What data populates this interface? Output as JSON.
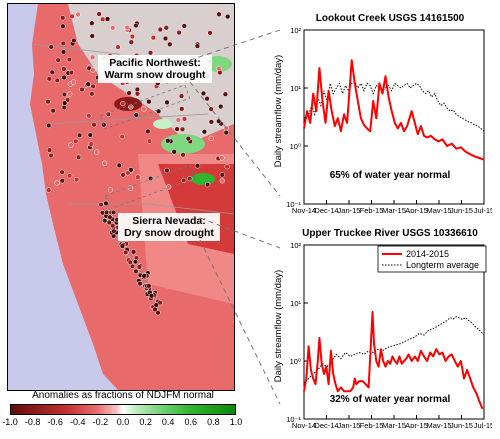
{
  "map": {
    "callout_pnw_line1": "Pacific Northwest:",
    "callout_pnw_line2": "Warm snow drought",
    "callout_sierra_line1": "Sierra Nevada:",
    "callout_sierra_line2": "Dry snow drought",
    "colorbar_title": "Anomalies as fractions of NDJFM normal",
    "colorbar_ticks": [
      "-1.0",
      "-0.8",
      "-0.6",
      "-0.4",
      "-0.2",
      "0.0",
      "0.2",
      "0.4",
      "0.6",
      "0.8",
      "1.0"
    ],
    "colors": {
      "land_dry": "#e86a6a",
      "land_dark": "#8b1a1a",
      "wet": "#2fb62f",
      "ocean": "#c9c9ec"
    }
  },
  "chart_data": [
    {
      "type": "line",
      "title": "Lookout Creek USGS 14161500",
      "ylabel": "Daily streamflow (mm/day)",
      "xlabel": "",
      "x": [
        "Nov-14",
        "Dec-14",
        "Jan-15",
        "Feb-15",
        "Mar-15",
        "Apr-15",
        "May-15",
        "Jun-15",
        "Jul-15"
      ],
      "y_scale": "log",
      "ylim": [
        0.1,
        100
      ],
      "y_ticks": [
        "10⁻¹",
        "10⁰",
        "10¹",
        "10²"
      ],
      "annotation": "65% of water year normal",
      "legend": false,
      "series": [
        {
          "style": "solid",
          "color": "#ff0000",
          "points": [
            [
              0,
              2
            ],
            [
              4,
              4
            ],
            [
              8,
              2.5
            ],
            [
              12,
              8
            ],
            [
              16,
              4
            ],
            [
              20,
              22
            ],
            [
              24,
              6
            ],
            [
              28,
              2.5
            ],
            [
              32,
              9
            ],
            [
              36,
              4
            ],
            [
              40,
              2.2
            ],
            [
              44,
              3
            ],
            [
              48,
              1.8
            ],
            [
              52,
              3.5
            ],
            [
              56,
              2.5
            ],
            [
              60,
              13
            ],
            [
              62,
              30
            ],
            [
              66,
              12
            ],
            [
              70,
              6
            ],
            [
              74,
              3
            ],
            [
              78,
              2.3
            ],
            [
              82,
              2
            ],
            [
              86,
              1.8
            ],
            [
              90,
              6
            ],
            [
              94,
              3
            ],
            [
              98,
              12
            ],
            [
              102,
              8
            ],
            [
              106,
              16
            ],
            [
              110,
              7
            ],
            [
              114,
              4
            ],
            [
              118,
              2.5
            ],
            [
              122,
              2
            ],
            [
              126,
              2.5
            ],
            [
              130,
              1.8
            ],
            [
              134,
              2.2
            ],
            [
              140,
              4
            ],
            [
              144,
              2.5
            ],
            [
              148,
              1.6
            ],
            [
              152,
              2.2
            ],
            [
              156,
              1.5
            ],
            [
              160,
              1.4
            ],
            [
              165,
              1.5
            ],
            [
              170,
              1.3
            ],
            [
              175,
              1.2
            ],
            [
              180,
              1.3
            ],
            [
              186,
              1
            ],
            [
              192,
              1.1
            ],
            [
              198,
              0.9
            ],
            [
              204,
              0.95
            ],
            [
              210,
              0.8
            ],
            [
              216,
              0.72
            ],
            [
              222,
              0.66
            ],
            [
              228,
              0.62
            ],
            [
              234,
              0.58
            ]
          ]
        },
        {
          "style": "dotted",
          "color": "#000000",
          "points": [
            [
              0,
              3
            ],
            [
              6,
              3.5
            ],
            [
              10,
              5
            ],
            [
              14,
              3.5
            ],
            [
              18,
              7
            ],
            [
              22,
              5
            ],
            [
              26,
              9
            ],
            [
              30,
              6
            ],
            [
              34,
              12
            ],
            [
              38,
              8
            ],
            [
              42,
              10
            ],
            [
              46,
              12
            ],
            [
              50,
              8
            ],
            [
              54,
              11
            ],
            [
              58,
              9
            ],
            [
              62,
              12
            ],
            [
              66,
              13
            ],
            [
              70,
              10
            ],
            [
              74,
              12
            ],
            [
              78,
              9
            ],
            [
              82,
              12
            ],
            [
              86,
              11
            ],
            [
              90,
              8
            ],
            [
              94,
              11
            ],
            [
              98,
              10
            ],
            [
              102,
              9
            ],
            [
              106,
              10
            ],
            [
              110,
              11
            ],
            [
              114,
              9
            ],
            [
              118,
              12
            ],
            [
              122,
              11
            ],
            [
              126,
              10
            ],
            [
              130,
              11
            ],
            [
              134,
              12
            ],
            [
              138,
              10
            ],
            [
              142,
              11
            ],
            [
              146,
              12
            ],
            [
              150,
              11
            ],
            [
              154,
              9
            ],
            [
              158,
              8
            ],
            [
              162,
              9
            ],
            [
              166,
              7
            ],
            [
              170,
              8
            ],
            [
              174,
              6
            ],
            [
              178,
              5
            ],
            [
              182,
              5.5
            ],
            [
              186,
              4.5
            ],
            [
              190,
              4
            ],
            [
              194,
              4.2
            ],
            [
              198,
              3.5
            ],
            [
              202,
              3.2
            ],
            [
              206,
              3
            ],
            [
              210,
              2.8
            ],
            [
              214,
              2.6
            ],
            [
              218,
              2.5
            ],
            [
              222,
              2.3
            ],
            [
              226,
              2.2
            ],
            [
              230,
              2
            ],
            [
              234,
              1.8
            ]
          ]
        }
      ]
    },
    {
      "type": "line",
      "title": "Upper Truckee River USGS 10336610",
      "ylabel": "Daily streamflow (mm/day)",
      "xlabel": "",
      "x": [
        "Nov-14",
        "Dec-14",
        "Jan-15",
        "Feb-15",
        "Mar-15",
        "Apr-15",
        "May-15",
        "Jun-15",
        "Jul-15"
      ],
      "y_scale": "log",
      "ylim": [
        0.1,
        100
      ],
      "y_ticks": [
        "10⁻¹",
        "10⁰",
        "10¹",
        "10²"
      ],
      "annotation": "32% of water year normal",
      "legend": true,
      "legend_placement": "top-right",
      "series": [
        {
          "name": "2014-2015",
          "style": "solid",
          "color": "#ff0000",
          "points": [
            [
              0,
              0.3
            ],
            [
              3,
              0.5
            ],
            [
              6,
              1.8
            ],
            [
              9,
              0.7
            ],
            [
              12,
              0.5
            ],
            [
              15,
              0.4
            ],
            [
              18,
              1
            ],
            [
              20,
              2.5
            ],
            [
              23,
              0.9
            ],
            [
              26,
              0.6
            ],
            [
              29,
              0.8
            ],
            [
              32,
              0.4
            ],
            [
              35,
              1.5
            ],
            [
              38,
              0.6
            ],
            [
              41,
              0.4
            ],
            [
              44,
              0.3
            ],
            [
              48,
              0.35
            ],
            [
              52,
              0.3
            ],
            [
              56,
              0.3
            ],
            [
              60,
              0.3
            ],
            [
              64,
              0.35
            ],
            [
              66,
              0.5
            ],
            [
              68,
              0.4
            ],
            [
              72,
              0.45
            ],
            [
              76,
              0.45
            ],
            [
              80,
              0.4
            ],
            [
              84,
              0.35
            ],
            [
              87,
              2
            ],
            [
              89,
              7
            ],
            [
              91,
              2
            ],
            [
              94,
              1
            ],
            [
              97,
              0.8
            ],
            [
              100,
              1.6
            ],
            [
              103,
              1
            ],
            [
              106,
              0.8
            ],
            [
              109,
              1
            ],
            [
              112,
              0.9
            ],
            [
              115,
              1.2
            ],
            [
              118,
              1
            ],
            [
              121,
              0.9
            ],
            [
              124,
              1.2
            ],
            [
              127,
              0.9
            ],
            [
              130,
              1
            ],
            [
              133,
              1.1
            ],
            [
              136,
              1.3
            ],
            [
              140,
              1
            ],
            [
              144,
              1.2
            ],
            [
              148,
              1
            ],
            [
              152,
              1.5
            ],
            [
              156,
              1.2
            ],
            [
              160,
              1
            ],
            [
              164,
              1.4
            ],
            [
              168,
              1.2
            ],
            [
              172,
              1.6
            ],
            [
              176,
              1.3
            ],
            [
              180,
              1.4
            ],
            [
              184,
              1
            ],
            [
              188,
              1.2
            ],
            [
              192,
              1.3
            ],
            [
              196,
              1
            ],
            [
              200,
              0.8
            ],
            [
              204,
              1
            ],
            [
              208,
              0.5
            ],
            [
              212,
              0.7
            ],
            [
              216,
              0.5
            ],
            [
              220,
              0.35
            ],
            [
              224,
              0.28
            ],
            [
              228,
              0.2
            ],
            [
              232,
              0.15
            ]
          ]
        },
        {
          "name": "Longterm average",
          "style": "dotted",
          "color": "#000000",
          "points": [
            [
              0,
              0.4
            ],
            [
              6,
              0.5
            ],
            [
              12,
              0.6
            ],
            [
              18,
              0.7
            ],
            [
              24,
              0.9
            ],
            [
              30,
              0.8
            ],
            [
              36,
              1
            ],
            [
              42,
              1.3
            ],
            [
              48,
              1.1
            ],
            [
              54,
              1.4
            ],
            [
              60,
              1.2
            ],
            [
              66,
              1.3
            ],
            [
              72,
              1.4
            ],
            [
              78,
              1.3
            ],
            [
              84,
              1.5
            ],
            [
              90,
              1.4
            ],
            [
              96,
              1.6
            ],
            [
              102,
              1.5
            ],
            [
              108,
              1.7
            ],
            [
              114,
              1.8
            ],
            [
              120,
              1.9
            ],
            [
              126,
              2
            ],
            [
              132,
              2.2
            ],
            [
              138,
              2.4
            ],
            [
              144,
              2.6
            ],
            [
              150,
              3
            ],
            [
              156,
              2.8
            ],
            [
              162,
              3.4
            ],
            [
              168,
              3.6
            ],
            [
              174,
              4
            ],
            [
              180,
              4.5
            ],
            [
              186,
              5
            ],
            [
              190,
              5.6
            ],
            [
              194,
              5.3
            ],
            [
              198,
              5.8
            ],
            [
              202,
              5.5
            ],
            [
              206,
              5.2
            ],
            [
              210,
              5.6
            ],
            [
              214,
              5
            ],
            [
              218,
              4.6
            ],
            [
              222,
              4
            ],
            [
              226,
              3.6
            ],
            [
              230,
              3.2
            ],
            [
              234,
              2.8
            ]
          ]
        }
      ]
    }
  ]
}
